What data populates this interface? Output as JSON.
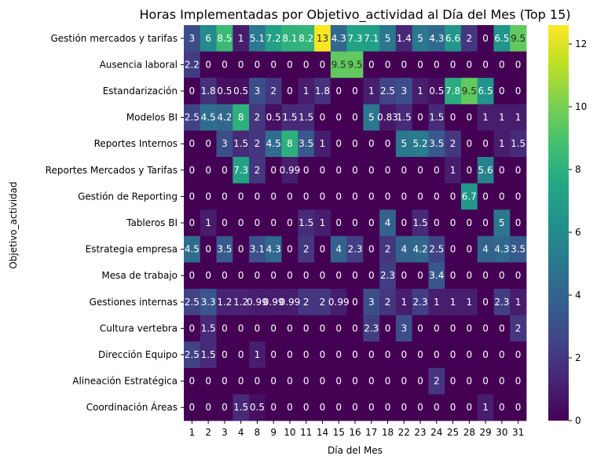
{
  "chart_data": {
    "type": "heatmap",
    "title": "Horas Implementadas por Objetivo_actividad al Día del Mes (Top 15)",
    "xlabel": "Día del Mes",
    "ylabel": "Objetivo_actividad",
    "colormap": "viridis",
    "vmin": 0,
    "vmax": 12.6,
    "colorbar_ticks": [
      0,
      2,
      4,
      6,
      8,
      10,
      12
    ],
    "x": [
      "1",
      "2",
      "3",
      "4",
      "8",
      "9",
      "10",
      "11",
      "14",
      "15",
      "16",
      "17",
      "18",
      "22",
      "23",
      "24",
      "25",
      "28",
      "29",
      "30",
      "31"
    ],
    "y": [
      "Gestión mercados y tarifas",
      "Ausencia laboral",
      "Estandarización",
      "Modelos BI",
      "Reportes Internos",
      "Reportes Mercados y Tarifas",
      "Gestión de Reporting",
      "Tableros BI",
      "Estrategia empresa",
      "Mesa de trabajo",
      "Gestiones internas",
      "Cultura vertebra",
      "Dirección Equipo",
      "Alineación Estratégica",
      "Coordinación Áreas"
    ],
    "values": [
      [
        3,
        6,
        8.5,
        1,
        5.1,
        7.2,
        8.1,
        8.2,
        13,
        4.3,
        7.3,
        7.1,
        5,
        1.4,
        5,
        4.3,
        6.6,
        2,
        0,
        6.5,
        9.5
      ],
      [
        2.2,
        0,
        0,
        0,
        0,
        0,
        0,
        0,
        0,
        9.5,
        9.5,
        0,
        0,
        0,
        0,
        0,
        0,
        0,
        0,
        0,
        0
      ],
      [
        0,
        1.8,
        0.5,
        0.5,
        3,
        2,
        0,
        1,
        1.8,
        0,
        0,
        1,
        2.5,
        3,
        1,
        0.5,
        7.8,
        9.5,
        6.5,
        0,
        0
      ],
      [
        2.5,
        4.5,
        4.2,
        8,
        2,
        0.5,
        1.5,
        1.5,
        0,
        0,
        0,
        5,
        0.83,
        1.5,
        0,
        1.5,
        0,
        0,
        1,
        1,
        1
      ],
      [
        0,
        0,
        3,
        1.5,
        2,
        4.5,
        8,
        3.5,
        1,
        0,
        0,
        0,
        0,
        5,
        5.2,
        3.5,
        2,
        0,
        0,
        1,
        1.5
      ],
      [
        0,
        0,
        0,
        7.3,
        2,
        0,
        0.99,
        0,
        0,
        0,
        0,
        0,
        0,
        0,
        0,
        0,
        1,
        0,
        5.6,
        0,
        0
      ],
      [
        0,
        0,
        0,
        0,
        0,
        0,
        0,
        0,
        0,
        0,
        0,
        0,
        0,
        0,
        0,
        0,
        0,
        6.7,
        0,
        0,
        0
      ],
      [
        0,
        1,
        0,
        0,
        0,
        0,
        0,
        1.5,
        1,
        0,
        0,
        0,
        4,
        0,
        1.5,
        0,
        0,
        0,
        0,
        5,
        0
      ],
      [
        4.5,
        0,
        3.5,
        0,
        3.1,
        4.3,
        0,
        2,
        0,
        4,
        2.3,
        0,
        2,
        4,
        4.2,
        2.5,
        0,
        0,
        4,
        4.3,
        3.5
      ],
      [
        0,
        0,
        0,
        0,
        0,
        0,
        0,
        0,
        0,
        0,
        0,
        0,
        2.3,
        0,
        0,
        3.4,
        0,
        0,
        0,
        0,
        0
      ],
      [
        2.5,
        3.3,
        1.2,
        1.2,
        0.99,
        0.99,
        0.99,
        2,
        2,
        0.99,
        0,
        3,
        2,
        1,
        2.3,
        1,
        1,
        1,
        0,
        2.3,
        1
      ],
      [
        0,
        1.5,
        0,
        0,
        0,
        0,
        0,
        0,
        0,
        0,
        0,
        2.3,
        0,
        3,
        0,
        0,
        0,
        0,
        0,
        0,
        2
      ],
      [
        2.5,
        1.5,
        0,
        0,
        1,
        0,
        0,
        0,
        0,
        0,
        0,
        0,
        0,
        0,
        0,
        0,
        0,
        0,
        0,
        0,
        0
      ],
      [
        0,
        0,
        0,
        0,
        0,
        0,
        0,
        0,
        0,
        0,
        0,
        0,
        0,
        0,
        0,
        2,
        0,
        0,
        0,
        0,
        0
      ],
      [
        0,
        0,
        0,
        1.5,
        0.5,
        0,
        0,
        0,
        0,
        0,
        0,
        0,
        0,
        0,
        0,
        0,
        0,
        0,
        1,
        0,
        0
      ]
    ]
  }
}
